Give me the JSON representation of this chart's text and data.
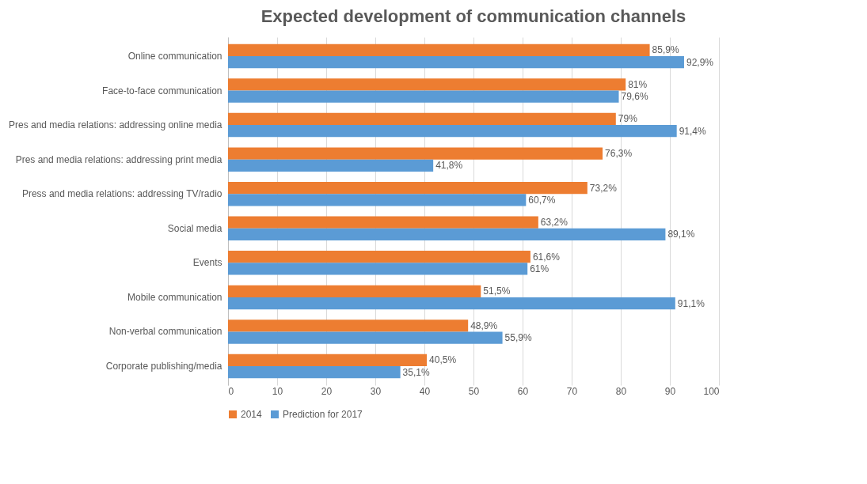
{
  "chart_data": {
    "type": "bar",
    "orientation": "horizontal",
    "title": "Expected development of communication channels",
    "categories": [
      "Online communication",
      "Face-to-face communication",
      "Pres and media relations: addressing online media",
      "Pres and media relations: addressing print media",
      "Press and media relations: addressing TV/radio",
      "Social media",
      "Events",
      "Mobile communication",
      "Non-verbal communication",
      "Corporate publishing/media"
    ],
    "series": [
      {
        "name": "2014",
        "color": "#ed7d31",
        "values": [
          85.9,
          81,
          79,
          76.3,
          73.2,
          63.2,
          61.6,
          51.5,
          48.9,
          40.5
        ],
        "value_labels": [
          "85,9%",
          "81%",
          "79%",
          "76,3%",
          "73,2%",
          "63,2%",
          "61,6%",
          "51,5%",
          "48,9%",
          "40,5%"
        ]
      },
      {
        "name": "Prediction for 2017",
        "color": "#5b9bd5",
        "values": [
          92.9,
          79.6,
          91.4,
          41.8,
          60.7,
          89.1,
          61,
          91.1,
          55.9,
          35.1
        ],
        "value_labels": [
          "92,9%",
          "79,6%",
          "91,4%",
          "41,8%",
          "60,7%",
          "89,1%",
          "61%",
          "91,1%",
          "55,9%",
          "35,1%"
        ]
      }
    ],
    "xlim": [
      0,
      100
    ],
    "xticks": [
      0,
      10,
      20,
      30,
      40,
      50,
      60,
      70,
      80,
      90,
      100
    ],
    "grid": "x",
    "legend": "bottom"
  }
}
